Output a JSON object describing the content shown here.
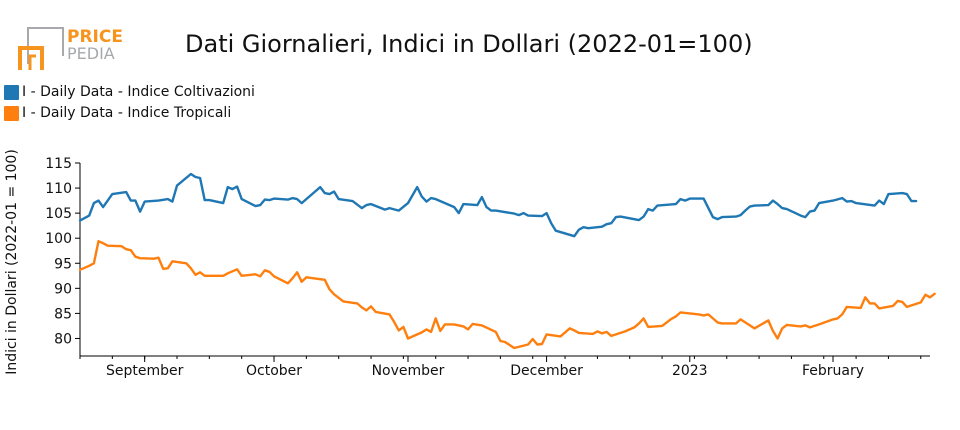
{
  "brand": {
    "line1": "PRICE",
    "line2": "PEDIA",
    "accent": "#f7941d",
    "gray": "#a7a9ac"
  },
  "colors": {
    "series1": "#1f77b4",
    "series2": "#ff7f0e",
    "axis": "#000000"
  },
  "chart_data": {
    "type": "line",
    "title": "Dati Giornalieri, Indici in Dollari (2022-01=100)",
    "ylabel": "Indici in Dollari (2022-01 = 100)",
    "xlabel": "",
    "ylim": [
      76.5,
      115
    ],
    "xlim": [
      "2022-08-22",
      "2023-02-22"
    ],
    "y_ticks": [
      80,
      85,
      90,
      95,
      100,
      105,
      110,
      115
    ],
    "x_ticks": [
      {
        "date": "2022-09-05",
        "label": "September"
      },
      {
        "date": "2022-10-03",
        "label": "October"
      },
      {
        "date": "2022-11-01",
        "label": "November"
      },
      {
        "date": "2022-12-01",
        "label": "December"
      },
      {
        "date": "2023-01-01",
        "label": "2023"
      },
      {
        "date": "2023-02-01",
        "label": "February"
      }
    ],
    "grid": false,
    "legend": "top-left",
    "series": [
      {
        "name": "I - Daily Data - Indice Coltivazioni",
        "points": [
          [
            "2022-08-22",
            103.5
          ],
          [
            "2022-08-24",
            104.5
          ],
          [
            "2022-08-25",
            107.0
          ],
          [
            "2022-08-26",
            107.5
          ],
          [
            "2022-08-27",
            106.2
          ],
          [
            "2022-08-29",
            108.8
          ],
          [
            "2022-09-01",
            109.2
          ],
          [
            "2022-09-02",
            107.5
          ],
          [
            "2022-09-03",
            107.5
          ],
          [
            "2022-09-04",
            105.3
          ],
          [
            "2022-09-05",
            107.3
          ],
          [
            "2022-09-08",
            107.5
          ],
          [
            "2022-09-10",
            107.8
          ],
          [
            "2022-09-11",
            107.3
          ],
          [
            "2022-09-12",
            110.5
          ],
          [
            "2022-09-15",
            112.8
          ],
          [
            "2022-09-16",
            112.2
          ],
          [
            "2022-09-17",
            112.0
          ],
          [
            "2022-09-18",
            107.6
          ],
          [
            "2022-09-19",
            107.6
          ],
          [
            "2022-09-22",
            107.0
          ],
          [
            "2022-09-23",
            110.2
          ],
          [
            "2022-09-24",
            109.8
          ],
          [
            "2022-09-25",
            110.3
          ],
          [
            "2022-09-26",
            107.8
          ],
          [
            "2022-09-29",
            106.4
          ],
          [
            "2022-09-30",
            106.6
          ],
          [
            "2022-10-01",
            107.7
          ],
          [
            "2022-10-02",
            107.6
          ],
          [
            "2022-10-03",
            107.9
          ],
          [
            "2022-10-06",
            107.7
          ],
          [
            "2022-10-07",
            108.0
          ],
          [
            "2022-10-08",
            107.8
          ],
          [
            "2022-10-09",
            107.0
          ],
          [
            "2022-10-13",
            110.2
          ],
          [
            "2022-10-14",
            109.0
          ],
          [
            "2022-10-15",
            108.8
          ],
          [
            "2022-10-16",
            109.3
          ],
          [
            "2022-10-17",
            107.8
          ],
          [
            "2022-10-20",
            107.4
          ],
          [
            "2022-10-22",
            106.0
          ],
          [
            "2022-10-23",
            106.6
          ],
          [
            "2022-10-24",
            106.8
          ],
          [
            "2022-10-27",
            105.7
          ],
          [
            "2022-10-28",
            106.0
          ],
          [
            "2022-10-30",
            105.5
          ],
          [
            "2022-11-01",
            107.0
          ],
          [
            "2022-11-03",
            110.2
          ],
          [
            "2022-11-04",
            108.3
          ],
          [
            "2022-11-05",
            107.3
          ],
          [
            "2022-11-06",
            108.0
          ],
          [
            "2022-11-07",
            107.8
          ],
          [
            "2022-11-10",
            106.6
          ],
          [
            "2022-11-11",
            106.2
          ],
          [
            "2022-11-12",
            105.0
          ],
          [
            "2022-11-13",
            106.8
          ],
          [
            "2022-11-16",
            106.6
          ],
          [
            "2022-11-17",
            108.2
          ],
          [
            "2022-11-18",
            106.2
          ],
          [
            "2022-11-19",
            105.5
          ],
          [
            "2022-11-20",
            105.5
          ],
          [
            "2022-11-24",
            104.9
          ],
          [
            "2022-11-25",
            104.6
          ],
          [
            "2022-11-26",
            105.0
          ],
          [
            "2022-11-27",
            104.5
          ],
          [
            "2022-11-30",
            104.4
          ],
          [
            "2022-12-01",
            105.0
          ],
          [
            "2022-12-02",
            103.0
          ],
          [
            "2022-12-03",
            101.5
          ],
          [
            "2022-12-07",
            100.4
          ],
          [
            "2022-12-08",
            101.7
          ],
          [
            "2022-12-09",
            102.2
          ],
          [
            "2022-12-10",
            102.0
          ],
          [
            "2022-12-13",
            102.3
          ],
          [
            "2022-12-14",
            102.8
          ],
          [
            "2022-12-15",
            103.0
          ],
          [
            "2022-12-16",
            104.2
          ],
          [
            "2022-12-17",
            104.3
          ],
          [
            "2022-12-21",
            103.6
          ],
          [
            "2022-12-22",
            104.3
          ],
          [
            "2022-12-23",
            105.8
          ],
          [
            "2022-12-24",
            105.5
          ],
          [
            "2022-12-25",
            106.5
          ],
          [
            "2022-12-29",
            106.8
          ],
          [
            "2022-12-30",
            107.8
          ],
          [
            "2022-12-31",
            107.5
          ],
          [
            "2023-01-01",
            107.9
          ],
          [
            "2023-01-04",
            107.9
          ],
          [
            "2023-01-06",
            104.2
          ],
          [
            "2023-01-07",
            103.8
          ],
          [
            "2023-01-08",
            104.2
          ],
          [
            "2023-01-11",
            104.3
          ],
          [
            "2023-01-12",
            104.6
          ],
          [
            "2023-01-13",
            105.5
          ],
          [
            "2023-01-14",
            106.3
          ],
          [
            "2023-01-15",
            106.5
          ],
          [
            "2023-01-18",
            106.6
          ],
          [
            "2023-01-19",
            107.5
          ],
          [
            "2023-01-20",
            106.8
          ],
          [
            "2023-01-21",
            106.0
          ],
          [
            "2023-01-22",
            105.8
          ],
          [
            "2023-01-25",
            104.5
          ],
          [
            "2023-01-26",
            104.2
          ],
          [
            "2023-01-27",
            105.3
          ],
          [
            "2023-01-28",
            105.5
          ],
          [
            "2023-01-29",
            107.0
          ],
          [
            "2023-02-01",
            107.5
          ],
          [
            "2023-02-03",
            108.0
          ],
          [
            "2023-02-04",
            107.3
          ],
          [
            "2023-02-05",
            107.4
          ],
          [
            "2023-02-06",
            107.0
          ],
          [
            "2023-02-10",
            106.5
          ],
          [
            "2023-02-11",
            107.5
          ],
          [
            "2023-02-12",
            106.8
          ],
          [
            "2023-02-13",
            108.8
          ],
          [
            "2023-02-16",
            109.0
          ],
          [
            "2023-02-17",
            108.8
          ],
          [
            "2023-02-18",
            107.4
          ],
          [
            "2023-02-19",
            107.4
          ]
        ]
      },
      {
        "name": "I - Daily Data - Indice Tropicali",
        "points": [
          [
            "2022-08-22",
            93.7
          ],
          [
            "2022-08-24",
            94.5
          ],
          [
            "2022-08-25",
            95.0
          ],
          [
            "2022-08-26",
            99.4
          ],
          [
            "2022-08-27",
            99.0
          ],
          [
            "2022-08-28",
            98.5
          ],
          [
            "2022-08-31",
            98.4
          ],
          [
            "2022-09-01",
            97.8
          ],
          [
            "2022-09-02",
            97.6
          ],
          [
            "2022-09-03",
            96.3
          ],
          [
            "2022-09-04",
            96.0
          ],
          [
            "2022-09-07",
            95.9
          ],
          [
            "2022-09-08",
            96.1
          ],
          [
            "2022-09-09",
            93.9
          ],
          [
            "2022-09-10",
            94.0
          ],
          [
            "2022-09-11",
            95.4
          ],
          [
            "2022-09-14",
            95.0
          ],
          [
            "2022-09-15",
            94.0
          ],
          [
            "2022-09-16",
            92.7
          ],
          [
            "2022-09-17",
            93.2
          ],
          [
            "2022-09-18",
            92.5
          ],
          [
            "2022-09-22",
            92.5
          ],
          [
            "2022-09-23",
            93.0
          ],
          [
            "2022-09-25",
            93.8
          ],
          [
            "2022-09-26",
            92.5
          ],
          [
            "2022-09-29",
            92.8
          ],
          [
            "2022-09-30",
            92.4
          ],
          [
            "2022-10-01",
            93.6
          ],
          [
            "2022-10-02",
            93.3
          ],
          [
            "2022-10-03",
            92.4
          ],
          [
            "2022-10-06",
            91.0
          ],
          [
            "2022-10-07",
            92.0
          ],
          [
            "2022-10-08",
            93.2
          ],
          [
            "2022-10-09",
            91.3
          ],
          [
            "2022-10-10",
            92.2
          ],
          [
            "2022-10-14",
            91.7
          ],
          [
            "2022-10-15",
            89.8
          ],
          [
            "2022-10-16",
            88.8
          ],
          [
            "2022-10-18",
            87.4
          ],
          [
            "2022-10-21",
            87.0
          ],
          [
            "2022-10-22",
            86.2
          ],
          [
            "2022-10-23",
            85.6
          ],
          [
            "2022-10-24",
            86.4
          ],
          [
            "2022-10-25",
            85.3
          ],
          [
            "2022-10-28",
            84.8
          ],
          [
            "2022-10-29",
            83.3
          ],
          [
            "2022-10-30",
            81.6
          ],
          [
            "2022-10-31",
            82.3
          ],
          [
            "2022-11-01",
            80.0
          ],
          [
            "2022-11-04",
            81.2
          ],
          [
            "2022-11-05",
            81.8
          ],
          [
            "2022-11-06",
            81.3
          ],
          [
            "2022-11-07",
            84.0
          ],
          [
            "2022-11-08",
            81.5
          ],
          [
            "2022-11-09",
            82.8
          ],
          [
            "2022-11-11",
            82.8
          ],
          [
            "2022-11-13",
            82.4
          ],
          [
            "2022-11-14",
            81.8
          ],
          [
            "2022-11-15",
            82.9
          ],
          [
            "2022-11-17",
            82.6
          ],
          [
            "2022-11-20",
            81.3
          ],
          [
            "2022-11-21",
            79.5
          ],
          [
            "2022-11-22",
            79.3
          ],
          [
            "2022-11-24",
            78.1
          ],
          [
            "2022-11-27",
            78.8
          ],
          [
            "2022-11-28",
            79.9
          ],
          [
            "2022-11-29",
            78.8
          ],
          [
            "2022-11-30",
            78.9
          ],
          [
            "2022-12-01",
            80.8
          ],
          [
            "2022-12-04",
            80.4
          ],
          [
            "2022-12-05",
            81.2
          ],
          [
            "2022-12-06",
            82.0
          ],
          [
            "2022-12-07",
            81.6
          ],
          [
            "2022-12-08",
            81.1
          ],
          [
            "2022-12-11",
            80.9
          ],
          [
            "2022-12-12",
            81.4
          ],
          [
            "2022-12-13",
            81.0
          ],
          [
            "2022-12-14",
            81.3
          ],
          [
            "2022-12-15",
            80.5
          ],
          [
            "2022-12-18",
            81.4
          ],
          [
            "2022-12-20",
            82.2
          ],
          [
            "2022-12-21",
            83.0
          ],
          [
            "2022-12-22",
            84.0
          ],
          [
            "2022-12-23",
            82.3
          ],
          [
            "2022-12-26",
            82.5
          ],
          [
            "2022-12-28",
            83.9
          ],
          [
            "2022-12-29",
            84.4
          ],
          [
            "2022-12-30",
            85.2
          ],
          [
            "2023-01-03",
            84.8
          ],
          [
            "2023-01-04",
            84.6
          ],
          [
            "2023-01-05",
            84.8
          ],
          [
            "2023-01-07",
            83.2
          ],
          [
            "2023-01-08",
            83.0
          ],
          [
            "2023-01-11",
            83.0
          ],
          [
            "2023-01-12",
            83.8
          ],
          [
            "2023-01-15",
            82.0
          ],
          [
            "2023-01-18",
            83.6
          ],
          [
            "2023-01-19",
            81.5
          ],
          [
            "2023-01-20",
            80.0
          ],
          [
            "2023-01-21",
            82.0
          ],
          [
            "2023-01-22",
            82.7
          ],
          [
            "2023-01-25",
            82.4
          ],
          [
            "2023-01-26",
            82.6
          ],
          [
            "2023-01-27",
            82.2
          ],
          [
            "2023-01-28",
            82.5
          ],
          [
            "2023-01-29",
            82.8
          ],
          [
            "2023-02-01",
            83.8
          ],
          [
            "2023-02-02",
            84.0
          ],
          [
            "2023-02-03",
            84.8
          ],
          [
            "2023-02-04",
            86.3
          ],
          [
            "2023-02-07",
            86.1
          ],
          [
            "2023-02-08",
            88.2
          ],
          [
            "2023-02-09",
            87.0
          ],
          [
            "2023-02-10",
            87.0
          ],
          [
            "2023-02-11",
            86.0
          ],
          [
            "2023-02-14",
            86.5
          ],
          [
            "2023-02-15",
            87.5
          ],
          [
            "2023-02-16",
            87.3
          ],
          [
            "2023-02-17",
            86.3
          ],
          [
            "2023-02-18",
            86.6
          ],
          [
            "2023-02-20",
            87.2
          ],
          [
            "2023-02-21",
            88.7
          ],
          [
            "2023-02-22",
            88.2
          ],
          [
            "2023-02-23",
            88.9
          ]
        ]
      }
    ]
  }
}
